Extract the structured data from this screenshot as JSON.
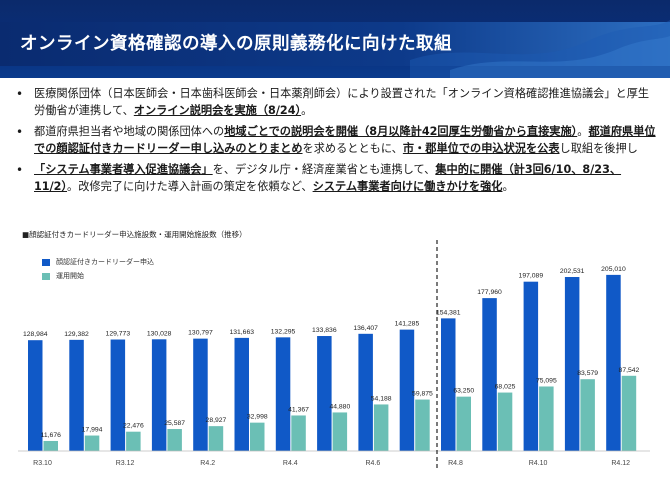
{
  "header": {
    "title": "オンライン資格確認の導入の原則義務化に向けた取組"
  },
  "bullets": [
    {
      "segments": [
        {
          "t": "医療関係団体（日本医師会・日本歯科医師会・日本薬剤師会）により設置された「オンライン資格確認推進協議会」と厚生労働省が連携して、",
          "s": "n"
        },
        {
          "t": "オンライン説明会を実施（8/24）",
          "s": "u"
        },
        {
          "t": "。",
          "s": "n"
        }
      ]
    },
    {
      "segments": [
        {
          "t": "都道府県担当者や地域の関係団体への",
          "s": "n"
        },
        {
          "t": "地域ごとでの説明会を開催（8月以降計42回厚生労働省から直接実施）",
          "s": "u"
        },
        {
          "t": "。",
          "s": "n"
        },
        {
          "t": "都道府県単位での顔認証付きカードリーダー申し込みのとりまとめ",
          "s": "u"
        },
        {
          "t": "を求めるとともに、",
          "s": "n"
        },
        {
          "t": "市・郡単位での申込状況を公表",
          "s": "u"
        },
        {
          "t": "し取組を後押し",
          "s": "n"
        }
      ]
    },
    {
      "segments": [
        {
          "t": "「システム事業者導入促進協議会」",
          "s": "u"
        },
        {
          "t": "を、デジタル庁・経済産業省とも連携して、",
          "s": "n"
        },
        {
          "t": "集中的に開催（計3回6/10、8/23、11/2）",
          "s": "u"
        },
        {
          "t": "。改修完了に向けた導入計画の策定を依頼など、",
          "s": "n"
        },
        {
          "t": "システム事業者向けに働きかけを強化",
          "s": "u"
        },
        {
          "t": "。",
          "s": "n"
        }
      ]
    }
  ],
  "chart_title": "■顔認証付きカードリーダー申込施設数・運用開始施設数（推移）",
  "colors": {
    "applied": "#1059c7",
    "operating": "#6bbfb5",
    "header": "#0a2f7a"
  },
  "chart_data": {
    "type": "bar",
    "x_labels": [
      "R3.10",
      "R3.12",
      "R4.2",
      "R4.4",
      "R4.6",
      "R4.8",
      "R4.10",
      "R4.12"
    ],
    "label_every": 2,
    "series": [
      {
        "name": "顔認証付きカードリーダー申込",
        "values": [
          128984,
          129382,
          129773,
          130028,
          130797,
          131663,
          132295,
          133836,
          136407,
          141285,
          154381,
          177960,
          197089,
          202531,
          205010
        ],
        "labels": [
          "128,984",
          "129,382",
          "129,773",
          "130,028",
          "130,797",
          "131,663",
          "132,295",
          "133,836",
          "136,407",
          "141,285",
          "154,381",
          "177,960",
          "197,089",
          "202,531",
          "205,010"
        ]
      },
      {
        "name": "運用開始",
        "values": [
          11676,
          17994,
          22476,
          25587,
          28927,
          32998,
          41367,
          44880,
          54188,
          59875,
          63250,
          68025,
          75095,
          83579,
          87542
        ],
        "labels": [
          "11,676",
          "17,994",
          "22,476",
          "25,587",
          "28,927",
          "32,998",
          "41,367",
          "44,880",
          "54,188",
          "59,875",
          "63,250",
          "68,025",
          "75,095",
          "83,579",
          "87,542"
        ]
      }
    ],
    "divider_after_index": 9
  }
}
